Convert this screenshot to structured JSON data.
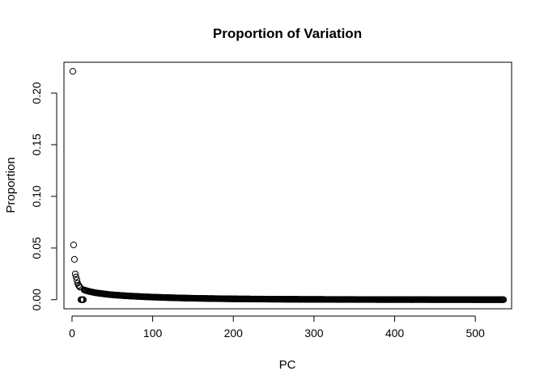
{
  "chart_data": {
    "type": "scatter",
    "title": "Proportion of Variation",
    "xlabel": "PC",
    "ylabel": "Proportion",
    "xlim": [
      -10,
      545
    ],
    "ylim": [
      -0.0088,
      0.2298
    ],
    "xticks": [
      0,
      100,
      200,
      300,
      400,
      500
    ],
    "xtick_labels": [
      "0",
      "100",
      "200",
      "300",
      "400",
      "500"
    ],
    "yticks": [
      0,
      0.05,
      0.1,
      0.15,
      0.2
    ],
    "ytick_labels": [
      "0.00",
      "0.05",
      "0.10",
      "0.15",
      "0.20"
    ],
    "grid": false,
    "n_points": 535,
    "leading_points": [
      {
        "x": 1,
        "y": 0.221
      },
      {
        "x": 2,
        "y": 0.053
      },
      {
        "x": 3,
        "y": 0.039
      },
      {
        "x": 4,
        "y": 0.025
      },
      {
        "x": 5,
        "y": 0.022
      },
      {
        "x": 6,
        "y": 0.019
      },
      {
        "x": 7,
        "y": 0.016
      },
      {
        "x": 8,
        "y": 0.014
      },
      {
        "x": 9,
        "y": 0.013
      },
      {
        "x": 10,
        "y": 0.012
      }
    ],
    "tail_points": [
      {
        "x": 15,
        "y": 0.0095
      },
      {
        "x": 20,
        "y": 0.0082
      },
      {
        "x": 30,
        "y": 0.0066
      },
      {
        "x": 50,
        "y": 0.0047
      },
      {
        "x": 75,
        "y": 0.0034
      },
      {
        "x": 100,
        "y": 0.0025
      },
      {
        "x": 150,
        "y": 0.0014
      },
      {
        "x": 200,
        "y": 0.0008
      },
      {
        "x": 300,
        "y": 0.0003
      },
      {
        "x": 400,
        "y": 0.0001
      },
      {
        "x": 535,
        "y": 0.0
      }
    ]
  }
}
